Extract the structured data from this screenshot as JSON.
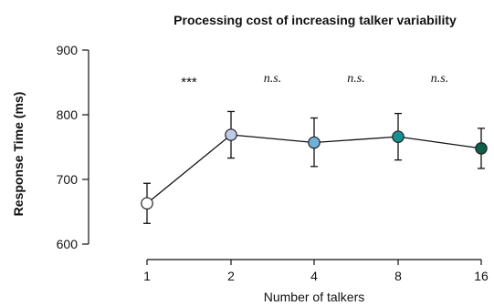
{
  "chart_data": {
    "type": "line",
    "title": "Processing cost of increasing talker variability",
    "xlabel": "Number of talkers",
    "ylabel": "Response Time (ms)",
    "x_categories": [
      "1",
      "2",
      "4",
      "8",
      "16"
    ],
    "yticks": [
      600,
      700,
      800,
      900
    ],
    "ylim": [
      600,
      900
    ],
    "grid": false,
    "series": [
      {
        "values": [
          663,
          769,
          757,
          766,
          748
        ],
        "error_low": [
          632,
          733,
          720,
          730,
          717
        ],
        "error_high": [
          694,
          805,
          795,
          802,
          779
        ],
        "point_colors": [
          "#ffffff",
          "#bfcbe6",
          "#6fb1d9",
          "#19908f",
          "#0e5e4a"
        ]
      }
    ],
    "annotations": [
      "***",
      "n.s.",
      "n.s.",
      "n.s."
    ]
  }
}
